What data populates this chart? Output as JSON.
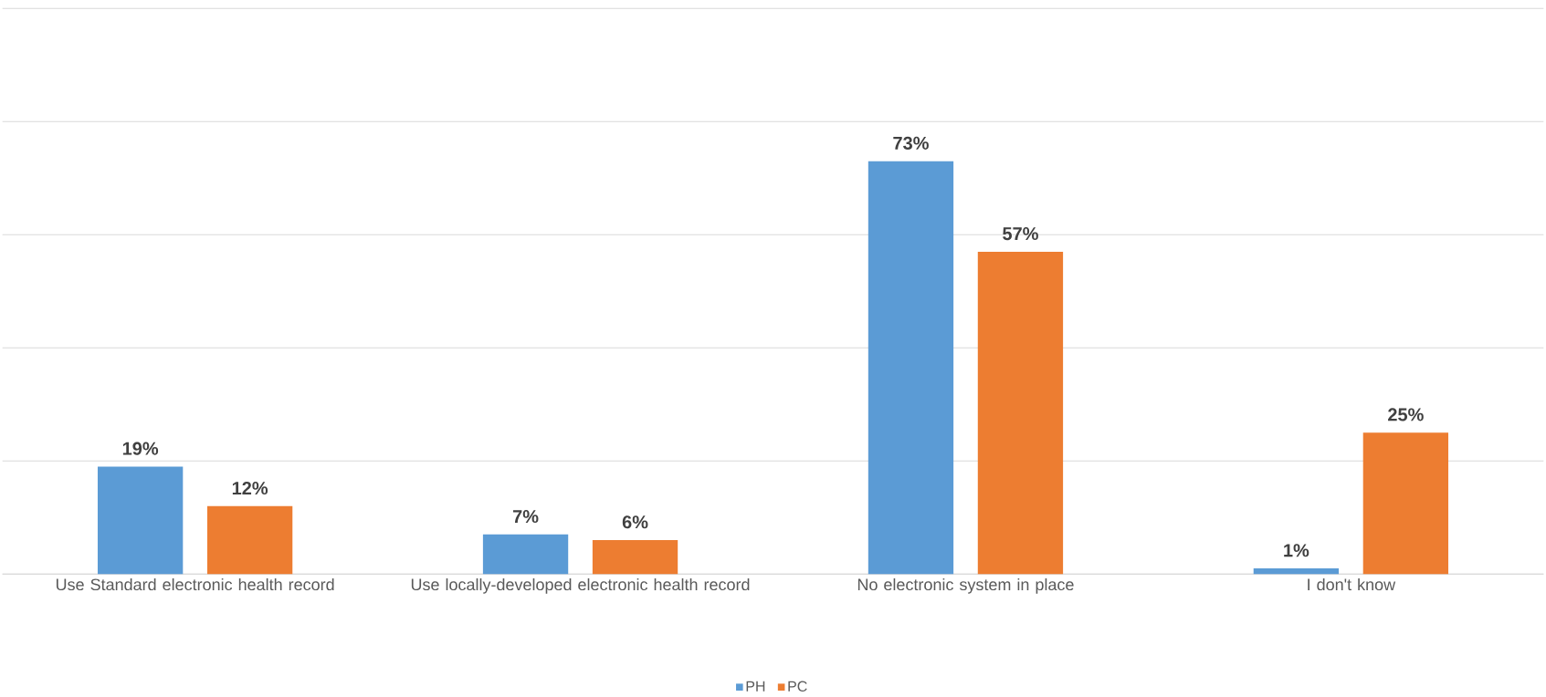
{
  "chart_data": {
    "type": "bar",
    "categories": [
      "Use Standard electronic health record",
      "Use locally-developed electronic health record",
      "No electronic system in place",
      "I don't know"
    ],
    "series": [
      {
        "name": "PH",
        "color": "#5b9bd5",
        "values": [
          19,
          7,
          73,
          1
        ],
        "value_labels": [
          "19%",
          "7%",
          "73%",
          "1%"
        ]
      },
      {
        "name": "PC",
        "color": "#ed7d31",
        "values": [
          12,
          6,
          57,
          25
        ],
        "value_labels": [
          "12%",
          "6%",
          "57%",
          "25%"
        ]
      }
    ],
    "ylim": [
      0,
      100
    ],
    "yticks": [
      {
        "value": 0,
        "label": null
      },
      {
        "value": 20,
        "label": null
      },
      {
        "value": 40,
        "label": null
      },
      {
        "value": 60,
        "label": null
      },
      {
        "value": 80,
        "label": null
      },
      {
        "value": 100,
        "label": null
      }
    ],
    "grid": "y",
    "legend": "bottom",
    "tick_labels": "x"
  }
}
